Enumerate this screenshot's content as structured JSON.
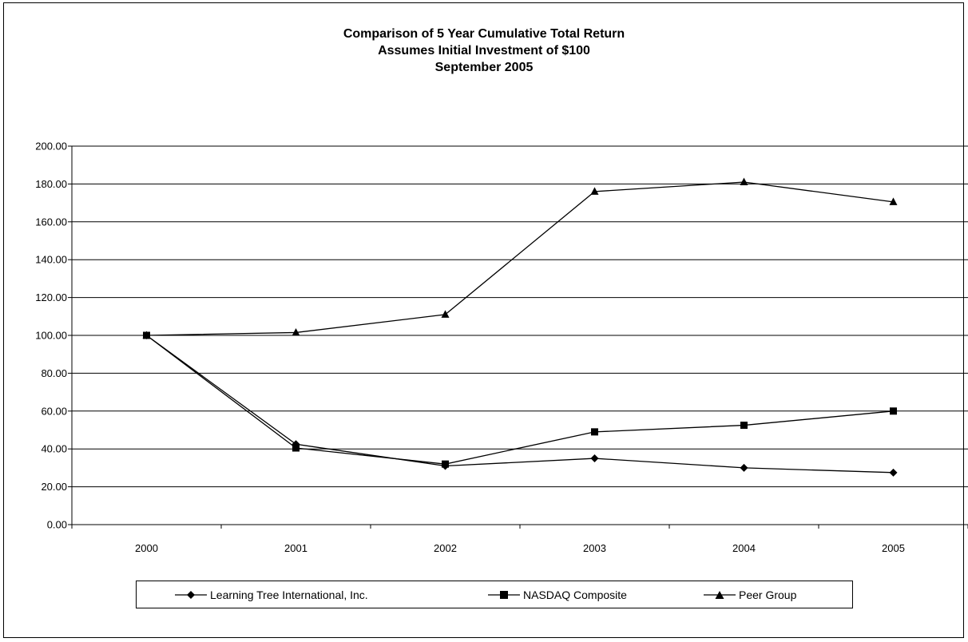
{
  "title_lines": [
    "Comparison of 5 Year Cumulative Total Return",
    "Assumes Initial Investment of $100",
    "September 2005"
  ],
  "chart_data": {
    "type": "line",
    "title": "Comparison of 5 Year Cumulative Total Return",
    "subtitle": "Assumes Initial Investment of $100 September 2005",
    "xlabel": "",
    "ylabel": "",
    "categories": [
      "2000",
      "2001",
      "2002",
      "2003",
      "2004",
      "2005"
    ],
    "ylim": [
      0,
      200
    ],
    "ytick_step": 20,
    "ytick_labels": [
      "0.00",
      "20.00",
      "40.00",
      "60.00",
      "80.00",
      "100.00",
      "120.00",
      "140.00",
      "160.00",
      "180.00",
      "200.00"
    ],
    "grid": true,
    "legend_position": "bottom",
    "series": [
      {
        "name": "Learning Tree International, Inc.",
        "marker": "diamond",
        "color": "#000000",
        "values": [
          100,
          42.5,
          31,
          35,
          30,
          27.5
        ]
      },
      {
        "name": "NASDAQ Composite",
        "marker": "square",
        "color": "#000000",
        "values": [
          100,
          40.5,
          32,
          49,
          52.5,
          60
        ]
      },
      {
        "name": "Peer Group",
        "marker": "triangle",
        "color": "#000000",
        "values": [
          100,
          101.5,
          111,
          176,
          181,
          170.5
        ]
      }
    ]
  }
}
